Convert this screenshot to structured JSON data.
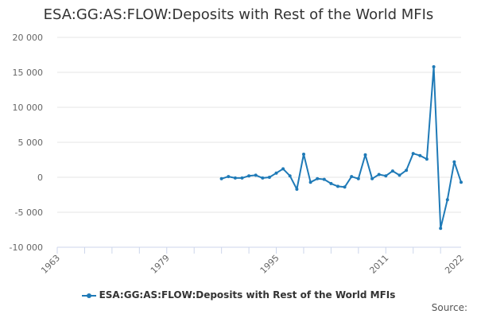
{
  "title": "ESA:GG:AS:FLOW:Deposits with Rest of the World MFIs",
  "legend": {
    "label": "ESA:GG:AS:FLOW:Deposits with Rest of the World MFIs"
  },
  "source_label": "Source:",
  "colors": {
    "series": "#1f7ab7",
    "grid": "#e6e6e6",
    "axis": "#ccd6eb"
  },
  "chart_data": {
    "type": "line",
    "title": "ESA:GG:AS:FLOW:Deposits with Rest of the World MFIs",
    "xlabel": "",
    "ylabel": "",
    "xlim": [
      1963,
      2022
    ],
    "ylim": [
      -10000,
      20000
    ],
    "x_ticks": [
      "1963",
      "1979",
      "1995",
      "2011",
      "2022"
    ],
    "y_ticks": [
      {
        "value": 20000,
        "label": "20 000"
      },
      {
        "value": 15000,
        "label": "15 000"
      },
      {
        "value": 10000,
        "label": "10 000"
      },
      {
        "value": 5000,
        "label": "5 000"
      },
      {
        "value": 0,
        "label": "0"
      },
      {
        "value": -5000,
        "label": "-5 000"
      },
      {
        "value": -10000,
        "label": "-10 000"
      }
    ],
    "grid": true,
    "legend_position": "bottom",
    "series": [
      {
        "name": "ESA:GG:AS:FLOW:Deposits with Rest of the World MFIs",
        "x": [
          1987,
          1988,
          1989,
          1990,
          1991,
          1992,
          1993,
          1994,
          1995,
          1996,
          1997,
          1998,
          1999,
          2000,
          2001,
          2002,
          2003,
          2004,
          2005,
          2006,
          2007,
          2008,
          2009,
          2010,
          2011,
          2012,
          2013,
          2014,
          2015,
          2016,
          2017,
          2018,
          2019,
          2020,
          2021,
          2022
        ],
        "y": [
          -200,
          100,
          -100,
          -100,
          200,
          300,
          -100,
          0,
          600,
          1200,
          200,
          -1700,
          3300,
          -700,
          -200,
          -300,
          -900,
          -1300,
          -1400,
          100,
          -200,
          3200,
          -200,
          400,
          200,
          900,
          300,
          1000,
          3400,
          3100,
          2600,
          15800,
          -7300,
          -3200,
          2200,
          -700
        ]
      }
    ]
  }
}
